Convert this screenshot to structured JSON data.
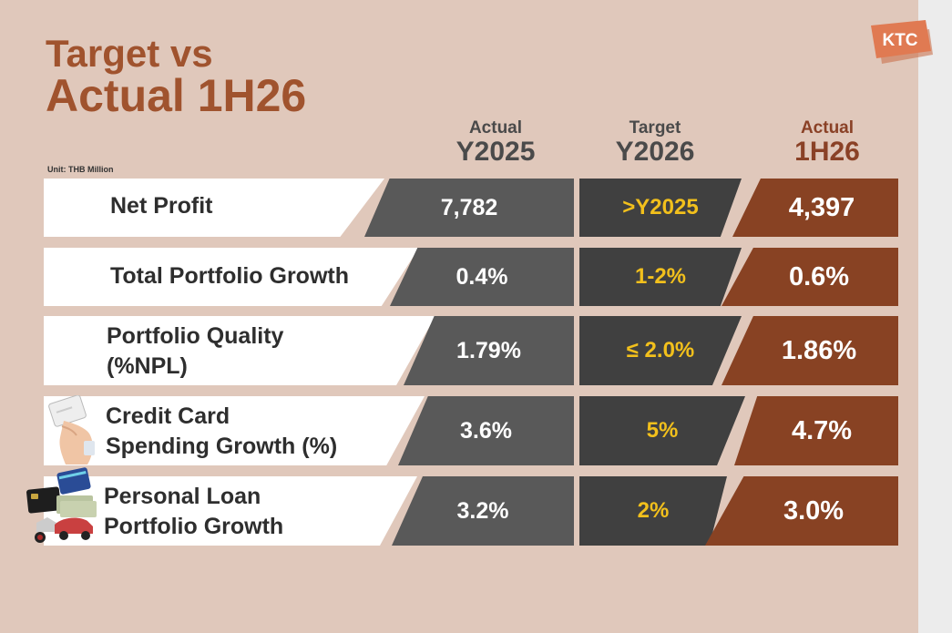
{
  "title": {
    "line1": "Target vs",
    "line2": "Actual 1H26"
  },
  "logo": {
    "text": "KTC",
    "color": "#e07a52"
  },
  "unit": "Unit: THB Million",
  "columns": [
    {
      "sub": "Actual",
      "main": "Y2025"
    },
    {
      "sub": "Target",
      "main": "Y2026"
    },
    {
      "sub": "Actual",
      "main": "1H26"
    }
  ],
  "rows": [
    {
      "label": "Net Profit",
      "actual_y2025": "7,782",
      "target_y2026": ">Y2025",
      "actual_1h26": "4,397"
    },
    {
      "label": "Total Portfolio Growth",
      "actual_y2025": "0.4%",
      "target_y2026": "1-2%",
      "actual_1h26": "0.6%"
    },
    {
      "label": "Portfolio Quality\n(%NPL)",
      "actual_y2025": "1.79%",
      "target_y2026": "≤ 2.0%",
      "actual_1h26": "1.86%"
    },
    {
      "label": "Credit Card\nSpending Growth (%)",
      "actual_y2025": "3.6%",
      "target_y2026": "5%",
      "actual_1h26": "4.7%"
    },
    {
      "label": "Personal Loan\nPortfolio Growth",
      "actual_y2025": "3.2%",
      "target_y2026": "2%",
      "actual_1h26": "3.0%"
    }
  ],
  "icons": {
    "credit_card": "hand-holding-card-icon",
    "personal_loan": "cards-money-vehicles-icon"
  },
  "colors": {
    "background": "#e0c8bb",
    "title": "#a0532e",
    "actual_cell": "#595959",
    "target_cell": "#404040",
    "target_text": "#f2c01c",
    "h1_cell": "#884223"
  }
}
